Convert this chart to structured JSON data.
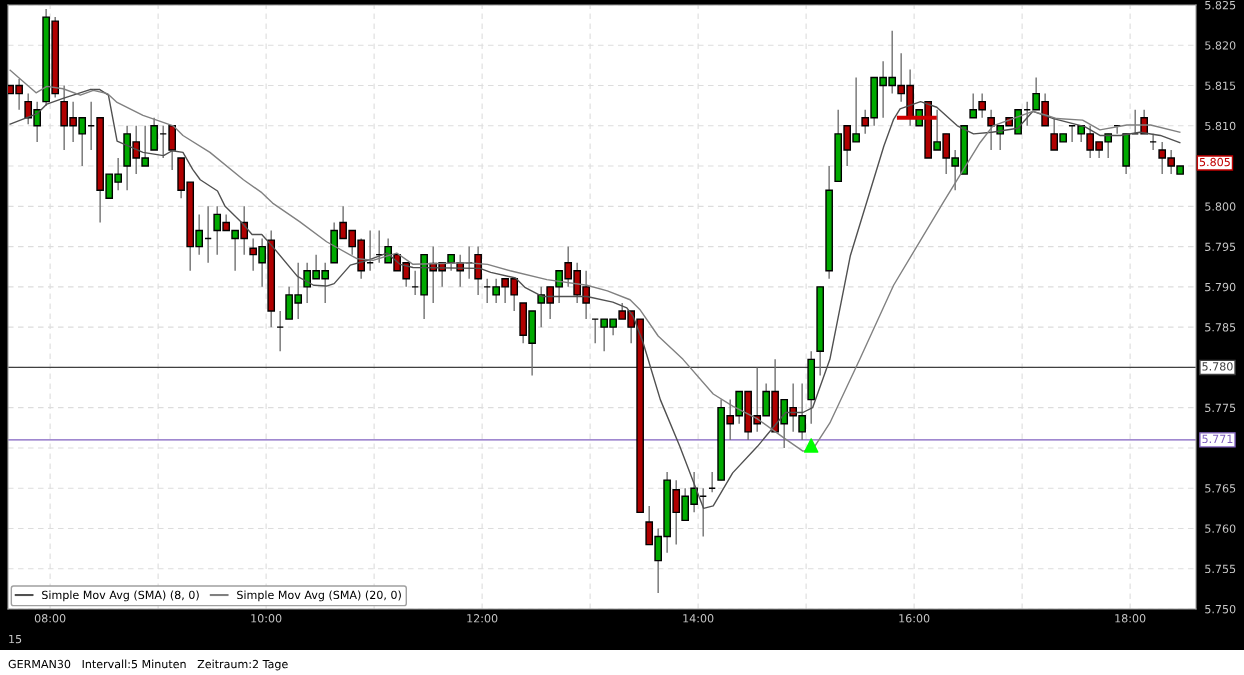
{
  "chart_data": {
    "type": "candlestick",
    "x": [
      7.63,
      7.713,
      7.797,
      7.88,
      7.963,
      8.047,
      8.13,
      8.213,
      8.297,
      8.38,
      8.463,
      8.547,
      8.63,
      8.713,
      8.797,
      8.88,
      8.963,
      9.047,
      9.13,
      9.213,
      9.297,
      9.38,
      9.463,
      9.547,
      9.63,
      9.713,
      9.797,
      9.88,
      9.963,
      10.047,
      10.13,
      10.213,
      10.297,
      10.38,
      10.463,
      10.547,
      10.63,
      10.713,
      10.797,
      10.88,
      10.963,
      11.047,
      11.13,
      11.213,
      11.297,
      11.38,
      11.463,
      11.547,
      11.63,
      11.713,
      11.797,
      11.88,
      11.963,
      12.047,
      12.13,
      12.213,
      12.297,
      12.38,
      12.463,
      12.547,
      12.63,
      12.713,
      12.797,
      12.88,
      12.963,
      13.047,
      13.13,
      13.213,
      13.297,
      13.38,
      13.463,
      13.547,
      13.63,
      13.713,
      13.797,
      13.88,
      13.963,
      14.047,
      14.13,
      14.213,
      14.297,
      14.38,
      14.463,
      14.547,
      14.63,
      14.713,
      14.797,
      14.88,
      14.963,
      15.047,
      15.13,
      15.213,
      15.297,
      15.38,
      15.463,
      15.547,
      15.63,
      15.713,
      15.797,
      15.88,
      15.963,
      16.047,
      16.13,
      16.213,
      16.297,
      16.38,
      16.463,
      16.547,
      16.63,
      16.713,
      16.797,
      16.88,
      16.963,
      17.047,
      17.13,
      17.213,
      17.297,
      17.38,
      17.463,
      17.547,
      17.63,
      17.713,
      17.797,
      17.88,
      17.963,
      18.047,
      18.13,
      18.213,
      18.297,
      18.38,
      18.463
    ],
    "ohlc": [
      [
        5.815,
        5.815,
        5.814,
        5.814
      ],
      [
        5.815,
        5.8158,
        5.812,
        5.814
      ],
      [
        5.813,
        5.814,
        5.8102,
        5.811
      ],
      [
        5.81,
        5.813,
        5.808,
        5.812
      ],
      [
        5.813,
        5.8245,
        5.8125,
        5.8235
      ],
      [
        5.823,
        5.8235,
        5.8135,
        5.814
      ],
      [
        5.813,
        5.815,
        5.807,
        5.81
      ],
      [
        5.811,
        5.813,
        5.808,
        5.81
      ],
      [
        5.809,
        5.811,
        5.805,
        5.811
      ],
      [
        5.81,
        5.813,
        5.807,
        5.81
      ],
      [
        5.811,
        5.811,
        5.798,
        5.802
      ],
      [
        5.801,
        5.804,
        5.801,
        5.804
      ],
      [
        5.803,
        5.806,
        5.802,
        5.804
      ],
      [
        5.805,
        5.81,
        5.802,
        5.809
      ],
      [
        5.808,
        5.81,
        5.804,
        5.806
      ],
      [
        5.805,
        5.81,
        5.805,
        5.806
      ],
      [
        5.807,
        5.811,
        5.807,
        5.81
      ],
      [
        5.809,
        5.81,
        5.806,
        5.809
      ],
      [
        5.81,
        5.81,
        5.8045,
        5.807
      ],
      [
        5.806,
        5.806,
        5.801,
        5.802
      ],
      [
        5.803,
        5.803,
        5.792,
        5.795
      ],
      [
        5.795,
        5.799,
        5.794,
        5.797
      ],
      [
        5.796,
        5.8,
        5.793,
        5.796
      ],
      [
        5.797,
        5.8,
        5.794,
        5.799
      ],
      [
        5.798,
        5.799,
        5.797,
        5.797
      ],
      [
        5.796,
        5.797,
        5.792,
        5.797
      ],
      [
        5.798,
        5.8,
        5.794,
        5.796
      ],
      [
        5.7948,
        5.796,
        5.792,
        5.794
      ],
      [
        5.793,
        5.796,
        5.79,
        5.795
      ],
      [
        5.7958,
        5.797,
        5.785,
        5.787
      ],
      [
        5.785,
        5.787,
        5.782,
        5.785
      ],
      [
        5.786,
        5.79,
        5.786,
        5.789
      ],
      [
        5.788,
        5.793,
        5.786,
        5.789
      ],
      [
        5.79,
        5.793,
        5.788,
        5.792
      ],
      [
        5.791,
        5.794,
        5.791,
        5.792
      ],
      [
        5.791,
        5.793,
        5.788,
        5.792
      ],
      [
        5.793,
        5.798,
        5.793,
        5.797
      ],
      [
        5.798,
        5.8,
        5.796,
        5.796
      ],
      [
        5.797,
        5.797,
        5.794,
        5.795
      ],
      [
        5.7958,
        5.796,
        5.791,
        5.792
      ],
      [
        5.793,
        5.797,
        5.792,
        5.793
      ],
      [
        5.794,
        5.797,
        5.793,
        5.794
      ],
      [
        5.793,
        5.796,
        5.793,
        5.795
      ],
      [
        5.794,
        5.794,
        5.792,
        5.792
      ],
      [
        5.793,
        5.793,
        5.79,
        5.791
      ],
      [
        5.79,
        5.792,
        5.789,
        5.79
      ],
      [
        5.789,
        5.794,
        5.786,
        5.794
      ],
      [
        5.7929,
        5.795,
        5.788,
        5.792
      ],
      [
        5.793,
        5.793,
        5.79,
        5.792
      ],
      [
        5.793,
        5.794,
        5.792,
        5.794
      ],
      [
        5.793,
        5.794,
        5.79,
        5.792
      ],
      [
        5.793,
        5.795,
        5.791,
        5.793
      ],
      [
        5.794,
        5.795,
        5.789,
        5.791
      ],
      [
        5.79,
        5.791,
        5.788,
        5.79
      ],
      [
        5.789,
        5.791,
        5.788,
        5.79
      ],
      [
        5.791,
        5.791,
        5.788,
        5.79
      ],
      [
        5.791,
        5.791,
        5.787,
        5.789
      ],
      [
        5.788,
        5.788,
        5.783,
        5.784
      ],
      [
        5.783,
        5.787,
        5.779,
        5.787
      ],
      [
        5.788,
        5.79,
        5.785,
        5.789
      ],
      [
        5.79,
        5.79,
        5.786,
        5.788
      ],
      [
        5.79,
        5.792,
        5.788,
        5.792
      ],
      [
        5.793,
        5.795,
        5.79,
        5.791
      ],
      [
        5.792,
        5.793,
        5.788,
        5.789
      ],
      [
        5.79,
        5.792,
        5.786,
        5.788
      ],
      [
        5.786,
        5.786,
        5.783,
        5.786
      ],
      [
        5.785,
        5.786,
        5.782,
        5.786
      ],
      [
        5.785,
        5.786,
        5.784,
        5.786
      ],
      [
        5.787,
        5.788,
        5.786,
        5.786
      ],
      [
        5.787,
        5.787,
        5.783,
        5.785
      ],
      [
        5.786,
        5.786,
        5.762,
        5.762
      ],
      [
        5.7608,
        5.7628,
        5.758,
        5.758
      ],
      [
        5.756,
        5.76,
        5.752,
        5.759
      ],
      [
        5.759,
        5.767,
        5.757,
        5.766
      ],
      [
        5.7648,
        5.766,
        5.758,
        5.762
      ],
      [
        5.761,
        5.765,
        5.761,
        5.764
      ],
      [
        5.763,
        5.767,
        5.762,
        5.765
      ],
      [
        5.764,
        5.765,
        5.759,
        5.764
      ],
      [
        5.765,
        5.767,
        5.7645,
        5.765
      ],
      [
        5.766,
        5.776,
        5.766,
        5.775
      ],
      [
        5.774,
        5.776,
        5.771,
        5.773
      ],
      [
        5.774,
        5.777,
        5.773,
        5.777
      ],
      [
        5.777,
        5.777,
        5.771,
        5.772
      ],
      [
        5.774,
        5.78,
        5.772,
        5.773
      ],
      [
        5.774,
        5.778,
        5.774,
        5.777
      ],
      [
        5.777,
        5.781,
        5.772,
        5.772
      ],
      [
        5.773,
        5.776,
        5.77,
        5.776
      ],
      [
        5.775,
        5.778,
        5.772,
        5.774
      ],
      [
        5.772,
        5.778,
        5.771,
        5.774
      ],
      [
        5.776,
        5.782,
        5.773,
        5.781
      ],
      [
        5.782,
        5.79,
        5.779,
        5.79
      ],
      [
        5.792,
        5.805,
        5.791,
        5.802
      ],
      [
        5.8031,
        5.812,
        5.8031,
        5.809
      ],
      [
        5.81,
        5.81,
        5.805,
        5.807
      ],
      [
        5.808,
        5.816,
        5.808,
        5.809
      ],
      [
        5.811,
        5.812,
        5.809,
        5.81
      ],
      [
        5.811,
        5.816,
        5.81,
        5.816
      ],
      [
        5.815,
        5.818,
        5.811,
        5.816
      ],
      [
        5.815,
        5.8218,
        5.814,
        5.816
      ],
      [
        5.815,
        5.819,
        5.813,
        5.814
      ],
      [
        5.815,
        5.817,
        5.81,
        5.811
      ],
      [
        5.81,
        5.812,
        5.81,
        5.812
      ],
      [
        5.813,
        5.813,
        5.806,
        5.806
      ],
      [
        5.807,
        5.812,
        5.807,
        5.808
      ],
      [
        5.809,
        5.809,
        5.804,
        5.806
      ],
      [
        5.805,
        5.807,
        5.802,
        5.806
      ],
      [
        5.804,
        5.81,
        5.804,
        5.81
      ],
      [
        5.811,
        5.814,
        5.811,
        5.812
      ],
      [
        5.813,
        5.814,
        5.811,
        5.812
      ],
      [
        5.811,
        5.812,
        5.807,
        5.81
      ],
      [
        5.809,
        5.81,
        5.807,
        5.81
      ],
      [
        5.811,
        5.811,
        5.81,
        5.81
      ],
      [
        5.809,
        5.812,
        5.809,
        5.812
      ],
      [
        5.812,
        5.813,
        5.81,
        5.812
      ],
      [
        5.812,
        5.816,
        5.812,
        5.814
      ],
      [
        5.813,
        5.814,
        5.81,
        5.81
      ],
      [
        5.809,
        5.811,
        5.807,
        5.807
      ],
      [
        5.808,
        5.809,
        5.808,
        5.809
      ],
      [
        5.81,
        5.81,
        5.808,
        5.81
      ],
      [
        5.809,
        5.81,
        5.808,
        5.81
      ],
      [
        5.809,
        5.81,
        5.806,
        5.807
      ],
      [
        5.808,
        5.808,
        5.806,
        5.807
      ],
      [
        5.808,
        5.809,
        5.806,
        5.809
      ],
      [
        5.81,
        5.81,
        5.809,
        5.81
      ],
      [
        5.805,
        5.809,
        5.804,
        5.809
      ],
      [
        5.809,
        5.812,
        5.809,
        5.809
      ],
      [
        5.811,
        5.812,
        5.809,
        5.809
      ],
      [
        5.808,
        5.809,
        5.807,
        5.808
      ],
      [
        5.807,
        5.808,
        5.804,
        5.806
      ],
      [
        5.806,
        5.807,
        5.804,
        5.805
      ],
      [
        5.804,
        5.805,
        5.804,
        5.805
      ]
    ],
    "series": [
      {
        "name": "Simple Mov Avg (SMA) (8, 0)",
        "type": "line",
        "color": "#505050",
        "x": [
          7.63,
          7.88,
          7.97,
          8.12,
          8.37,
          8.46,
          8.54,
          8.62,
          8.86,
          9.05,
          9.13,
          9.23,
          9.32,
          9.39,
          9.55,
          9.62,
          9.78,
          9.87,
          9.96,
          10.06,
          10.29,
          10.44,
          10.56,
          10.63,
          10.78,
          10.94,
          11.12,
          11.24,
          11.36,
          11.98,
          12.08,
          12.31,
          12.4,
          12.56,
          12.8,
          12.97,
          13.21,
          13.34,
          13.4,
          13.49,
          13.65,
          13.83,
          14.05,
          14.14,
          14.32,
          14.55,
          14.81,
          14.97,
          15.06,
          15.22,
          15.41,
          15.72,
          15.81,
          15.87,
          16.06,
          16.21,
          16.4,
          16.55,
          16.72,
          16.96,
          17.1,
          17.29,
          17.58,
          17.72,
          17.91,
          18.09,
          18.28,
          18.46
        ],
        "values": [
          5.8102,
          5.8115,
          5.8127,
          5.8134,
          5.8145,
          5.8145,
          5.8138,
          5.8081,
          5.8067,
          5.8063,
          5.8069,
          5.8067,
          5.8046,
          5.8033,
          5.8019,
          5.8,
          5.7979,
          5.7965,
          5.7965,
          5.795,
          5.7913,
          5.7902,
          5.7901,
          5.7904,
          5.7927,
          5.7933,
          5.7942,
          5.7928,
          5.7924,
          5.7923,
          5.7918,
          5.7911,
          5.7899,
          5.7888,
          5.7888,
          5.7888,
          5.7881,
          5.7874,
          5.7863,
          5.7831,
          5.776,
          5.7702,
          5.7625,
          5.7628,
          5.7669,
          5.7702,
          5.7744,
          5.7744,
          5.775,
          5.781,
          5.7939,
          5.8075,
          5.8108,
          5.8121,
          5.813,
          5.8123,
          5.81,
          5.809,
          5.8092,
          5.8097,
          5.8118,
          5.8109,
          5.8099,
          5.8088,
          5.8088,
          5.8092,
          5.8088,
          5.8079
        ]
      },
      {
        "name": "Simple Mov Avg (SMA) (20, 0)",
        "type": "line",
        "color": "#808080",
        "x": [
          7.63,
          7.87,
          7.97,
          8.12,
          8.28,
          8.4,
          8.53,
          8.62,
          8.86,
          9.14,
          9.23,
          9.48,
          9.79,
          9.96,
          10.06,
          10.31,
          10.56,
          10.84,
          10.99,
          11.21,
          11.36,
          11.86,
          12.05,
          12.26,
          12.6,
          12.97,
          13.16,
          13.37,
          13.46,
          13.63,
          13.86,
          14.14,
          14.32,
          14.55,
          14.81,
          14.97,
          15.06,
          15.22,
          15.5,
          15.81,
          16.27,
          16.61,
          16.73,
          17.1,
          17.23,
          17.32,
          17.56,
          17.72,
          17.97,
          18.19,
          18.46
        ],
        "values": [
          5.8169,
          5.8141,
          5.8149,
          5.8146,
          5.8138,
          5.8144,
          5.814,
          5.8129,
          5.8113,
          5.81,
          5.8088,
          5.8067,
          5.8033,
          5.8017,
          5.8004,
          5.7981,
          5.7956,
          5.7935,
          5.7933,
          5.7942,
          5.7928,
          5.793,
          5.7928,
          5.792,
          5.7909,
          5.7902,
          5.7895,
          5.7884,
          5.7872,
          5.7839,
          5.781,
          5.7767,
          5.7752,
          5.7736,
          5.7711,
          5.7696,
          5.7698,
          5.7731,
          5.7811,
          5.7902,
          5.8005,
          5.8079,
          5.81,
          5.8118,
          5.8113,
          5.8109,
          5.8107,
          5.8095,
          5.8101,
          5.8101,
          5.8092
        ]
      },
      {
        "type": "scatter",
        "marker": "triangle",
        "color": "#00ff00",
        "x": [
          15.047
        ],
        "values": [
          5.7703
        ]
      },
      {
        "type": "line",
        "color": "#d00000",
        "x": [
          15.86,
          16.19
        ],
        "values": [
          5.811,
          5.811
        ]
      }
    ],
    "xlim": [
      7.61,
      18.61
    ],
    "xticks": [
      {
        "value": 8,
        "label": "08:00"
      },
      {
        "value": 9,
        "label": null
      },
      {
        "value": 10,
        "label": "10:00"
      },
      {
        "value": 11,
        "label": null
      },
      {
        "value": 12,
        "label": "12:00"
      },
      {
        "value": 13,
        "label": null
      },
      {
        "value": 14,
        "label": "14:00"
      },
      {
        "value": 15,
        "label": null
      },
      {
        "value": 16,
        "label": "16:00"
      },
      {
        "value": 17,
        "label": null
      },
      {
        "value": 18,
        "label": "18:00"
      }
    ],
    "ylim": [
      5.75,
      5.825
    ],
    "yticks": [
      {
        "value": 5.75,
        "label": "5.750"
      },
      {
        "value": 5.755,
        "label": "5.755"
      },
      {
        "value": 5.76,
        "label": "5.760"
      },
      {
        "value": 5.765,
        "label": "5.765"
      },
      {
        "value": 5.77,
        "label": null
      },
      {
        "value": 5.775,
        "label": "5.775"
      },
      {
        "value": 5.78,
        "label": null
      },
      {
        "value": 5.785,
        "label": "5.785"
      },
      {
        "value": 5.79,
        "label": "5.790"
      },
      {
        "value": 5.795,
        "label": "5.795"
      },
      {
        "value": 5.8,
        "label": "5.800"
      },
      {
        "value": 5.805,
        "label": null
      },
      {
        "value": 5.81,
        "label": "5.810"
      },
      {
        "value": 5.815,
        "label": "5.815"
      },
      {
        "value": 5.82,
        "label": "5.820"
      },
      {
        "value": 5.825,
        "label": "5.825"
      }
    ],
    "ref_lines": [
      {
        "axis": "y",
        "value": 5.78,
        "label": "5.780",
        "color": "#404040"
      },
      {
        "axis": "y",
        "value": 5.771,
        "label": "5.771",
        "color": "#8060c0"
      }
    ],
    "annotations": [
      "5.805",
      "15",
      "GERMAN30   Intervall:5 Minuten   Zeitraum:2 Tage"
    ],
    "grid": true,
    "legend": "bottom left"
  }
}
